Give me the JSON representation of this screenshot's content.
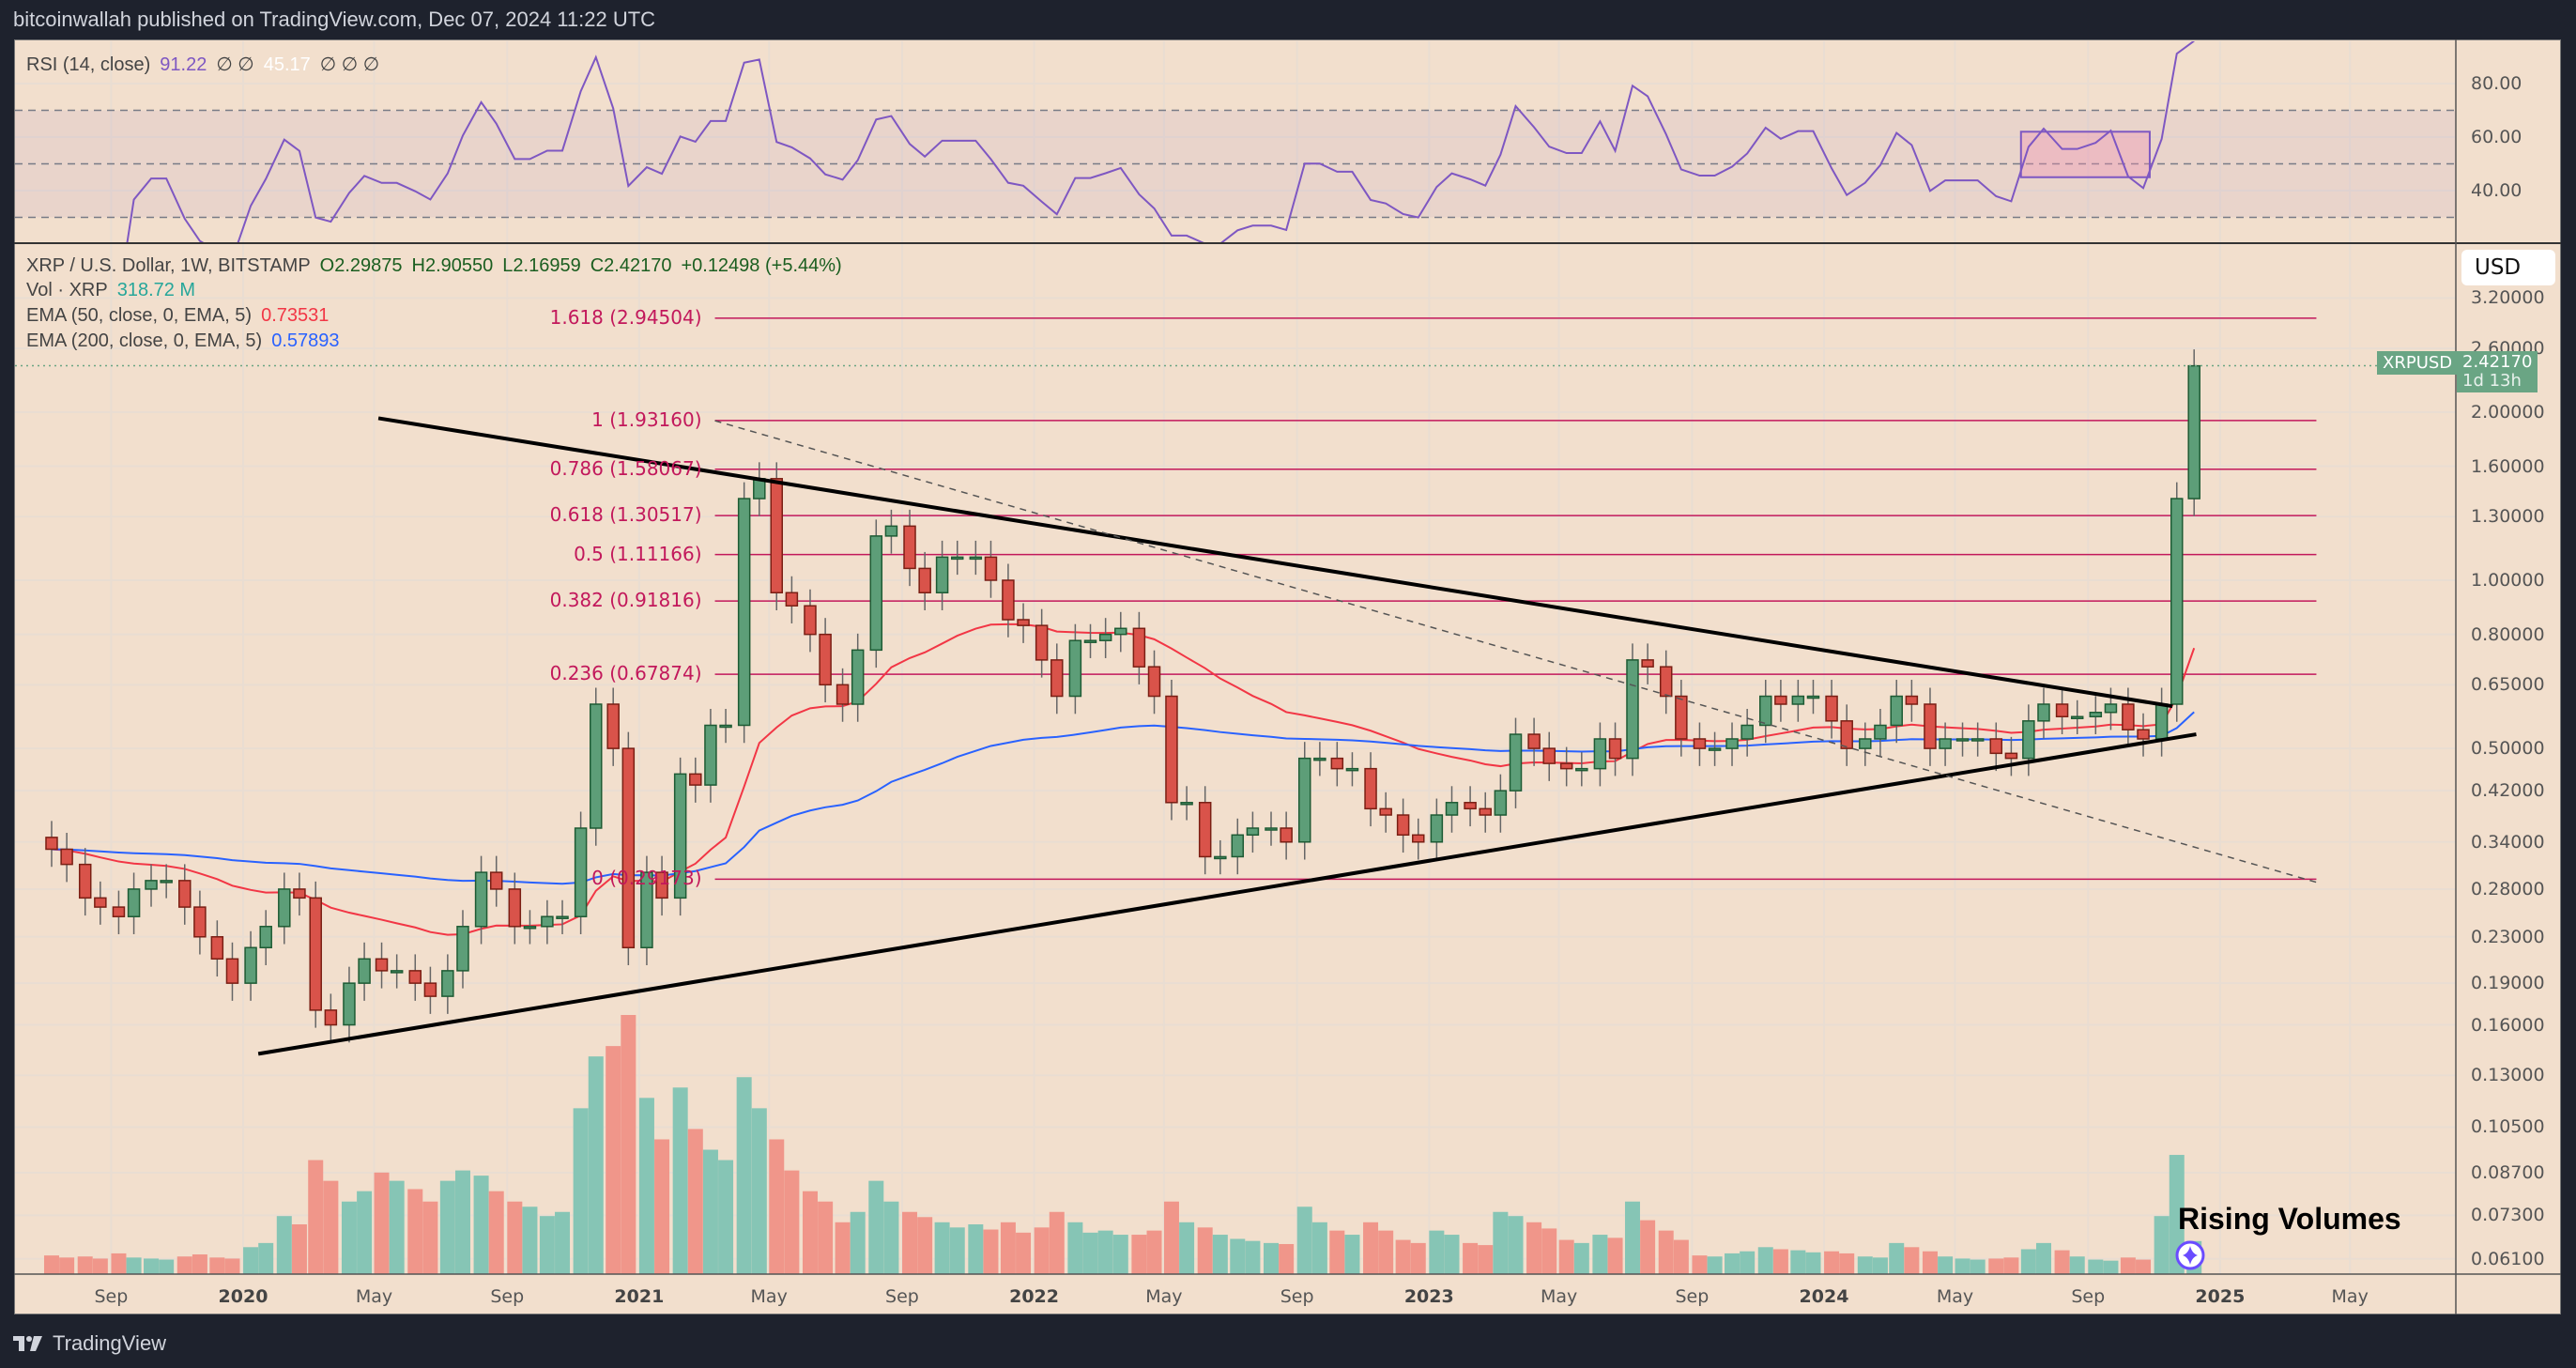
{
  "header": {
    "published": "bitcoinwallah published on TradingView.com, Dec 07, 2024 11:22 UTC"
  },
  "footer": {
    "brand": "TradingView",
    "logo_icon": "tradingview-logo-icon"
  },
  "rsi_legend": {
    "label": "RSI (14, close)",
    "value": "91.22",
    "null1": "∅ ∅",
    "value2": "45.17",
    "null2": "∅ ∅ ∅",
    "line_color": "#7e57c2"
  },
  "legend": {
    "symbol": "XRP / U.S. Dollar, 1W, BITSTAMP",
    "open": "O2.29875",
    "high": "H2.90550",
    "low": "L2.16959",
    "close": "C2.42170",
    "change": "+0.12498 (+5.44%)",
    "vol_label": "Vol · XRP",
    "vol_value": "318.72 M",
    "ema50_label": "EMA (50, close, 0, EMA, 5)",
    "ema50_value": "0.73531",
    "ema50_color": "#f23645",
    "ema200_label": "EMA (200, close, 0, EMA, 5)",
    "ema200_value": "0.57893",
    "ema200_color": "#2962ff"
  },
  "currency_button": "USD",
  "price_label": {
    "symbol": "XRPUSD",
    "price": "2.42170",
    "countdown": "1d 13h",
    "color": "#6aa584"
  },
  "annotation": {
    "text": "Rising Volumes",
    "icon": "sparkle-icon"
  },
  "chart_data": {
    "type": "candlestick",
    "scale": "log",
    "grid": true,
    "up_color": "#5d9e78",
    "down_color": "#d9534a",
    "vol_up_color": "#86c5b5",
    "vol_down_color": "#f0968a",
    "price_ticks": [
      "3.20000",
      "2.60000",
      "2.00000",
      "1.60000",
      "1.30000",
      "1.00000",
      "0.80000",
      "0.65000",
      "0.50000",
      "0.42000",
      "0.34000",
      "0.28000",
      "0.23000",
      "0.19000",
      "0.16000",
      "0.13000",
      "0.10500",
      "0.08700",
      "0.07300",
      "0.06100"
    ],
    "rsi_ticks": [
      "80.00",
      "60.00",
      "40.00"
    ],
    "rsi_bands": [
      70,
      50,
      30
    ],
    "time_ticks": [
      [
        "2019-09",
        "Sep",
        0
      ],
      [
        "2020-01",
        "2020",
        1
      ],
      [
        "2020-05",
        "May",
        0
      ],
      [
        "2020-09",
        "Sep",
        0
      ],
      [
        "2021-01",
        "2021",
        1
      ],
      [
        "2021-05",
        "May",
        0
      ],
      [
        "2021-09",
        "Sep",
        0
      ],
      [
        "2022-01",
        "2022",
        1
      ],
      [
        "2022-05",
        "May",
        0
      ],
      [
        "2022-09",
        "Sep",
        0
      ],
      [
        "2023-01",
        "2023",
        1
      ],
      [
        "2023-05",
        "May",
        0
      ],
      [
        "2023-09",
        "Sep",
        0
      ],
      [
        "2024-01",
        "2024",
        1
      ],
      [
        "2024-05",
        "May",
        0
      ],
      [
        "2024-09",
        "Sep",
        0
      ],
      [
        "2025-01",
        "2025",
        1
      ],
      [
        "2025-05",
        "May",
        0
      ]
    ],
    "candles_by_month": [
      [
        "2019-07",
        0.33,
        0.31,
        180,
        160
      ],
      [
        "2019-08",
        0.27,
        0.26,
        170,
        150
      ],
      [
        "2019-09",
        0.25,
        0.28,
        200,
        160
      ],
      [
        "2019-10",
        0.29,
        0.29,
        150,
        140
      ],
      [
        "2019-11",
        0.26,
        0.23,
        170,
        190
      ],
      [
        "2019-12",
        0.21,
        0.19,
        160,
        150
      ],
      [
        "2020-01",
        0.22,
        0.24,
        260,
        300
      ],
      [
        "2020-02",
        0.28,
        0.27,
        560,
        480
      ],
      [
        "2020-03",
        0.17,
        0.16,
        1100,
        900
      ],
      [
        "2020-04",
        0.19,
        0.21,
        700,
        800
      ],
      [
        "2020-05",
        0.2,
        0.2,
        980,
        900
      ],
      [
        "2020-06",
        0.19,
        0.18,
        820,
        700
      ],
      [
        "2020-07",
        0.2,
        0.24,
        900,
        1000
      ],
      [
        "2020-08",
        0.3,
        0.28,
        950,
        800
      ],
      [
        "2020-09",
        0.24,
        0.24,
        700,
        650
      ],
      [
        "2020-10",
        0.25,
        0.25,
        560,
        600
      ],
      [
        "2020-11",
        0.36,
        0.6,
        1600,
        2100
      ],
      [
        "2020-12",
        0.5,
        0.22,
        2200,
        2500
      ],
      [
        "2021-01",
        0.3,
        0.27,
        1700,
        1300
      ],
      [
        "2021-02",
        0.45,
        0.43,
        1800,
        1400
      ],
      [
        "2021-03",
        0.55,
        0.55,
        1200,
        1100
      ],
      [
        "2021-04",
        1.4,
        1.52,
        1900,
        1600
      ],
      [
        "2021-05",
        0.95,
        0.9,
        1300,
        1000
      ],
      [
        "2021-06",
        0.8,
        0.65,
        800,
        700
      ],
      [
        "2021-07",
        0.6,
        0.75,
        500,
        600
      ],
      [
        "2021-08",
        1.2,
        1.25,
        900,
        700
      ],
      [
        "2021-09",
        1.05,
        0.95,
        600,
        550
      ],
      [
        "2021-10",
        1.1,
        1.1,
        500,
        450
      ],
      [
        "2021-11",
        1.1,
        1.0,
        480,
        430
      ],
      [
        "2021-12",
        0.85,
        0.83,
        500,
        400
      ],
      [
        "2022-01",
        0.72,
        0.62,
        450,
        600
      ],
      [
        "2022-02",
        0.78,
        0.78,
        500,
        400
      ],
      [
        "2022-03",
        0.8,
        0.82,
        420,
        380
      ],
      [
        "2022-04",
        0.7,
        0.62,
        380,
        420
      ],
      [
        "2022-05",
        0.4,
        0.4,
        700,
        500
      ],
      [
        "2022-06",
        0.32,
        0.32,
        450,
        380
      ],
      [
        "2022-07",
        0.35,
        0.36,
        340,
        320
      ],
      [
        "2022-08",
        0.36,
        0.34,
        300,
        290
      ],
      [
        "2022-09",
        0.48,
        0.48,
        650,
        500
      ],
      [
        "2022-10",
        0.46,
        0.46,
        420,
        380
      ],
      [
        "2022-11",
        0.39,
        0.38,
        500,
        420
      ],
      [
        "2022-12",
        0.35,
        0.34,
        330,
        300
      ],
      [
        "2023-01",
        0.38,
        0.4,
        420,
        380
      ],
      [
        "2023-02",
        0.39,
        0.38,
        300,
        280
      ],
      [
        "2023-03",
        0.42,
        0.53,
        600,
        560
      ],
      [
        "2023-04",
        0.5,
        0.47,
        500,
        440
      ],
      [
        "2023-05",
        0.46,
        0.46,
        330,
        300
      ],
      [
        "2023-06",
        0.52,
        0.48,
        380,
        350
      ],
      [
        "2023-07",
        0.72,
        0.7,
        700,
        520
      ],
      [
        "2023-08",
        0.62,
        0.52,
        420,
        330
      ],
      [
        "2023-09",
        0.5,
        0.5,
        180,
        170
      ],
      [
        "2023-10",
        0.52,
        0.55,
        200,
        220
      ],
      [
        "2023-11",
        0.62,
        0.6,
        260,
        240
      ],
      [
        "2023-12",
        0.62,
        0.62,
        230,
        210
      ],
      [
        "2024-01",
        0.56,
        0.5,
        220,
        200
      ],
      [
        "2024-02",
        0.52,
        0.55,
        170,
        160
      ],
      [
        "2024-03",
        0.62,
        0.6,
        300,
        260
      ],
      [
        "2024-04",
        0.5,
        0.52,
        220,
        170
      ],
      [
        "2024-05",
        0.52,
        0.52,
        150,
        140
      ],
      [
        "2024-06",
        0.49,
        0.48,
        150,
        160
      ],
      [
        "2024-07",
        0.56,
        0.6,
        240,
        300
      ],
      [
        "2024-08",
        0.57,
        0.57,
        230,
        170
      ],
      [
        "2024-09",
        0.58,
        0.6,
        140,
        130
      ],
      [
        "2024-10",
        0.54,
        0.52,
        160,
        140
      ],
      [
        "2024-11",
        0.6,
        1.4,
        560,
        1150
      ],
      [
        "2024-12",
        2.42,
        null,
        318.72,
        null
      ]
    ],
    "ema_periods": [
      50,
      200
    ],
    "rsi_period": 14,
    "fib_levels": [
      {
        "ratio": "1.618",
        "price": 2.94504,
        "label": "1.618 (2.94504)"
      },
      {
        "ratio": "1",
        "price": 1.9316,
        "label": "1 (1.93160)"
      },
      {
        "ratio": "0.786",
        "price": 1.58067,
        "label": "0.786 (1.58067)"
      },
      {
        "ratio": "0.618",
        "price": 1.30517,
        "label": "0.618 (1.30517)"
      },
      {
        "ratio": "0.5",
        "price": 1.11166,
        "label": "0.5 (1.11166)"
      },
      {
        "ratio": "0.382",
        "price": 0.91816,
        "label": "0.382 (0.91816)"
      },
      {
        "ratio": "0.236",
        "price": 0.67874,
        "label": "0.236 (0.67874)"
      },
      {
        "ratio": "0",
        "price": 0.29173,
        "label": "0 (0.29173)"
      }
    ],
    "fib_color": "#c2185b",
    "fib_range": [
      "2021-03-12",
      "2025-03-31"
    ],
    "trendlines": [
      {
        "style": "solid",
        "from": [
          "2020-05-05",
          1.95
        ],
        "to": [
          "2024-11-18",
          0.595
        ]
      },
      {
        "style": "solid",
        "from": [
          "2020-01-15",
          0.142
        ],
        "to": [
          "2024-12-10",
          0.53
        ]
      },
      {
        "style": "dashed",
        "from": [
          "2021-03-12",
          1.93
        ],
        "to": [
          "2025-03-31",
          0.288
        ]
      }
    ],
    "rsi_box": {
      "from": "2024-07-01",
      "to": "2024-10-28",
      "rsi": [
        45,
        62
      ]
    }
  }
}
